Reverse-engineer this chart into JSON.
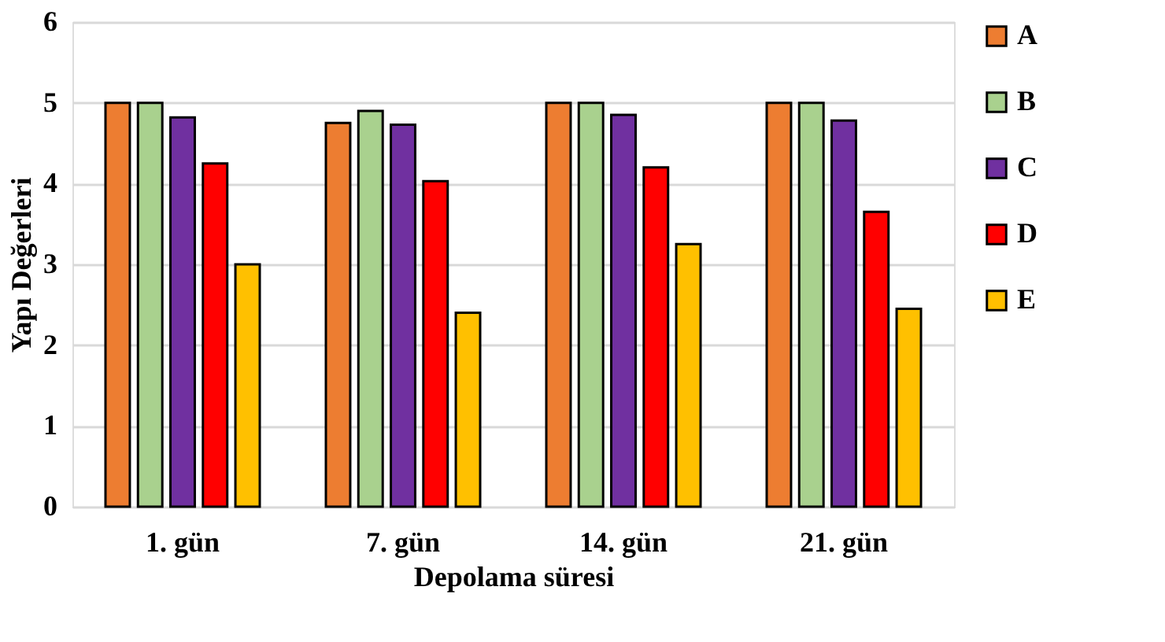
{
  "chart_data": {
    "type": "bar",
    "xlabel": "Depolama süresi",
    "ylabel": "Yapı Değerleri",
    "categories": [
      "1. gün",
      "7. gün",
      "14. gün",
      "21. gün"
    ],
    "series": [
      {
        "name": "A",
        "color": "#ed7d31",
        "values": [
          5.0,
          4.75,
          5.0,
          5.0
        ]
      },
      {
        "name": "B",
        "color": "#a9d18e",
        "values": [
          5.0,
          4.9,
          5.0,
          5.0
        ]
      },
      {
        "name": "C",
        "color": "#7030a0",
        "values": [
          4.82,
          4.73,
          4.85,
          4.78
        ]
      },
      {
        "name": "D",
        "color": "#ff0000",
        "values": [
          4.25,
          4.03,
          4.2,
          3.65
        ]
      },
      {
        "name": "E",
        "color": "#ffc000",
        "values": [
          3.0,
          2.4,
          3.25,
          2.45
        ]
      }
    ],
    "ylim": [
      0,
      6
    ],
    "yticks": [
      0,
      1,
      2,
      3,
      4,
      5,
      6
    ],
    "grid": "y",
    "legend": "right"
  }
}
